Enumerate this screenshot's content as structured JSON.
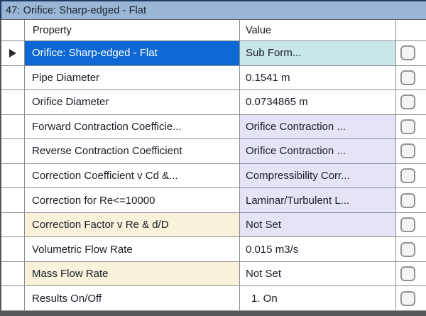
{
  "window": {
    "title": "47: Orifice: Sharp-edged - Flat"
  },
  "table": {
    "columns": {
      "property": "Property",
      "value": "Value"
    },
    "rows": [
      {
        "property": "Orifice: Sharp-edged - Flat",
        "value": "Sub Form...",
        "selected": true,
        "value_style": "teal",
        "checkbox_checked": false
      },
      {
        "property": "Pipe Diameter",
        "value": "0.1541 m",
        "selected": false,
        "value_style": "plain",
        "checkbox_checked": false
      },
      {
        "property": "Orifice Diameter",
        "value": "0.0734865 m",
        "selected": false,
        "value_style": "plain",
        "checkbox_checked": false
      },
      {
        "property": "Forward Contraction Coefficie...",
        "value": "Orifice Contraction ...",
        "selected": false,
        "value_style": "lavender",
        "checkbox_checked": false
      },
      {
        "property": "Reverse Contraction Coefficient",
        "value": "Orifice Contraction ...",
        "selected": false,
        "value_style": "lavender",
        "checkbox_checked": false
      },
      {
        "property": "Correction Coefficient v Cd &...",
        "value": "Compressibility Corr...",
        "selected": false,
        "value_style": "lavender",
        "checkbox_checked": false
      },
      {
        "property": "Correction for Re<=10000",
        "value": "Laminar/Turbulent L...",
        "selected": false,
        "value_style": "lavender",
        "checkbox_checked": false
      },
      {
        "property": "Correction Factor v Re & d/D",
        "value": "Not Set",
        "selected": false,
        "value_style": "lavender",
        "property_style": "cream",
        "checkbox_checked": false
      },
      {
        "property": "Volumetric Flow Rate",
        "value": "0.015 m3/s",
        "selected": false,
        "value_style": "plain",
        "checkbox_checked": false
      },
      {
        "property": "Mass Flow Rate",
        "value": "Not Set",
        "selected": false,
        "value_style": "plain",
        "property_style": "cream",
        "checkbox_checked": false
      },
      {
        "property": "Results On/Off",
        "value": "1. On",
        "selected": false,
        "value_style": "plain",
        "checkbox_checked": false
      }
    ]
  },
  "icons": {
    "row_indicator": "right-triangle-arrow"
  },
  "colors": {
    "titlebar_bg": "#9bb5d5",
    "titlebar_border": "#1e3a62",
    "selected_row_bg": "#0e68d4",
    "selected_row_text": "#ffffff",
    "value_teal_bg": "#c9e7e9",
    "value_lavender_bg": "#e4e4f6",
    "property_cream_bg": "#f8f2da",
    "gridline": "#8a8d91",
    "bottom_bar": "#55595e",
    "text": "#191c26"
  }
}
